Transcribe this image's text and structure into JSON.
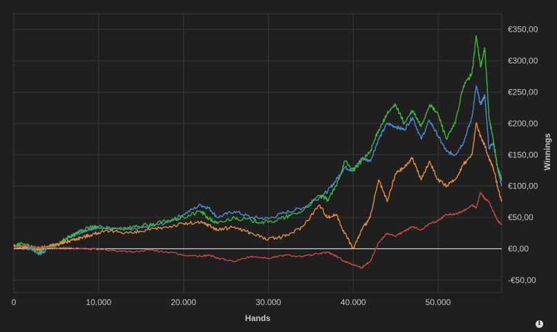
{
  "chart_data": {
    "type": "line",
    "xlabel": "Hands",
    "ylabel": "Winnings",
    "xlim": [
      0,
      57500
    ],
    "ylim": [
      -70,
      375
    ],
    "x_ticks": [
      0,
      10000,
      20000,
      30000,
      40000,
      50000
    ],
    "x_tick_labels": [
      "0",
      "10.000",
      "20.000",
      "30.000",
      "40.000",
      "50.000"
    ],
    "y_ticks": [
      -50,
      0,
      50,
      100,
      150,
      200,
      250,
      300,
      350
    ],
    "y_tick_labels": [
      "-€50,00",
      "€0,00",
      "€50,00",
      "€100,00",
      "€150,00",
      "€200,00",
      "€250,00",
      "€300,00",
      "€350,00"
    ],
    "grid": true,
    "x": [
      0,
      1000,
      2000,
      3000,
      3500,
      4000,
      5000,
      6000,
      7000,
      8000,
      9000,
      10000,
      12000,
      14000,
      16000,
      18000,
      20000,
      22000,
      23000,
      24000,
      26000,
      28000,
      30000,
      32000,
      34000,
      36000,
      37000,
      38000,
      39000,
      40000,
      41000,
      42000,
      43000,
      44000,
      45000,
      46000,
      47000,
      48000,
      49000,
      50000,
      51000,
      52000,
      53000,
      54000,
      54500,
      55000,
      55500,
      56000,
      56500,
      57000,
      57500
    ],
    "series": [
      {
        "color": "#4a8fd6",
        "values": [
          5,
          3,
          0,
          -8,
          -5,
          2,
          5,
          15,
          22,
          28,
          32,
          35,
          33,
          30,
          35,
          42,
          55,
          70,
          65,
          50,
          60,
          50,
          48,
          58,
          65,
          82,
          92,
          110,
          130,
          125,
          145,
          140,
          175,
          200,
          195,
          190,
          210,
          175,
          205,
          180,
          155,
          150,
          170,
          210,
          260,
          230,
          245,
          160,
          170,
          130,
          100
        ]
      },
      {
        "color": "#3dbb3d",
        "values": [
          5,
          8,
          3,
          -5,
          0,
          3,
          5,
          15,
          22,
          28,
          35,
          33,
          32,
          35,
          38,
          44,
          50,
          60,
          48,
          40,
          50,
          45,
          42,
          50,
          60,
          85,
          78,
          100,
          140,
          125,
          140,
          155,
          190,
          215,
          230,
          200,
          220,
          195,
          230,
          215,
          175,
          200,
          260,
          280,
          340,
          290,
          320,
          210,
          175,
          130,
          110
        ]
      },
      {
        "color": "#e8913a",
        "values": [
          4,
          2,
          3,
          0,
          2,
          4,
          7,
          10,
          15,
          18,
          22,
          26,
          28,
          25,
          30,
          35,
          40,
          42,
          38,
          30,
          35,
          25,
          15,
          20,
          35,
          70,
          50,
          55,
          25,
          0,
          30,
          50,
          110,
          75,
          120,
          130,
          145,
          110,
          140,
          110,
          100,
          110,
          135,
          150,
          200,
          180,
          165,
          145,
          130,
          100,
          75
        ]
      },
      {
        "color": "#c44a4a",
        "values": [
          3,
          4,
          3,
          2,
          3,
          2,
          1,
          2,
          1,
          0,
          0,
          -1,
          -3,
          -5,
          -2,
          -5,
          -10,
          -12,
          -10,
          -15,
          -20,
          -12,
          -15,
          -10,
          -12,
          -8,
          -5,
          -12,
          -20,
          -25,
          -30,
          -20,
          10,
          25,
          20,
          28,
          35,
          30,
          40,
          45,
          55,
          55,
          60,
          70,
          65,
          90,
          80,
          75,
          60,
          45,
          38
        ]
      }
    ]
  }
}
